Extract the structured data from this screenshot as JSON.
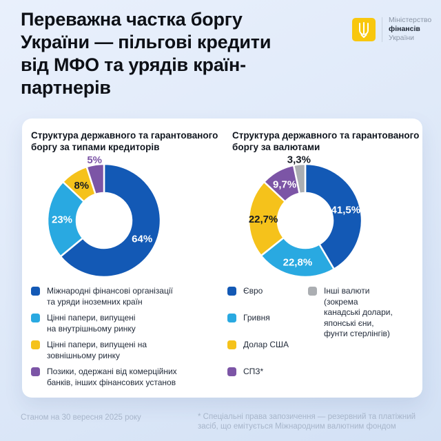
{
  "header": {
    "title": "Переважна частка боргу\nУкраїни — пільгові кредити\nвід МФО та урядів країн-\nпартнерів",
    "logo": {
      "line1": "Міністерство",
      "line2": "фінансів",
      "line3": "України",
      "emblem": "ukraine-trident",
      "emblem_color": "#F8C70E"
    }
  },
  "chart_data": [
    {
      "type": "pie",
      "donut": true,
      "title": "Структура державного та гарантованого боргу за типами кредиторів",
      "title_lines": "Структура державного та гарантованого\nборгу за типами кредиторів",
      "unit": "%",
      "legend_position": "bottom",
      "slices": [
        {
          "name": "Міжнародні фінансові організації та уряди іноземних країн",
          "value": 64,
          "label": "64%",
          "color": "#1359B5",
          "label_color": "#FFFFFF",
          "legend_text": "Міжнародні фінансові організації\nта уряди іноземних країн"
        },
        {
          "name": "Цінні папери, випущені на внутрішньому ринку",
          "value": 23,
          "label": "23%",
          "color": "#29A9E1",
          "label_color": "#FFFFFF",
          "legend_text": "Цінні папери, випущені\nна внутрішньому ринку"
        },
        {
          "name": "Цінні папери, випущені на зовнішньому ринку",
          "value": 8,
          "label": "8%",
          "color": "#F5C21B",
          "label_color": "#151A22",
          "legend_text": "Цінні папери, випущені на\nзовнішньому ринку"
        },
        {
          "name": "Позики, одержані від комерційних банків, інших фінансових установ",
          "value": 5,
          "label": "5%",
          "color": "#7C55A6",
          "label_color": "#7C55A6",
          "label_outside": true,
          "legend_text": "Позики, одержані від комерційних\nбанків, інших фінансових установ"
        }
      ]
    },
    {
      "type": "pie",
      "donut": true,
      "title": "Структура державного та гарантованого боргу за валютами",
      "title_lines": "Структура державного та гарантованого\nборгу за валютами",
      "unit": "%",
      "legend_position": "bottom",
      "slices": [
        {
          "name": "Євро",
          "value": 41.5,
          "label": "41,5%",
          "color": "#1359B5",
          "label_color": "#FFFFFF",
          "legend_text": "Євро",
          "legend_column": 1
        },
        {
          "name": "Гривня",
          "value": 22.8,
          "label": "22,8%",
          "color": "#29A9E1",
          "label_color": "#FFFFFF",
          "legend_text": "Гривня",
          "legend_column": 1
        },
        {
          "name": "Долар США",
          "value": 22.7,
          "label": "22,7%",
          "color": "#F5C21B",
          "label_color": "#151A22",
          "legend_text": "Долар США",
          "legend_column": 1
        },
        {
          "name": "СПЗ*",
          "value": 9.7,
          "label": "9,7%",
          "color": "#7C55A6",
          "label_color": "#FFFFFF",
          "legend_text": "СПЗ*",
          "legend_column": 1
        },
        {
          "name": "Інші валюти (зокрема канадські долари, японські єни, фунти стерлінгів)",
          "value": 3.3,
          "label": "3,3%",
          "color": "#ABAEB2",
          "label_color": "#151A22",
          "label_outside": true,
          "legend_text": "Інші валюти\n(зокрема\nканадські долари,\nяпонські єни,\nфунти стерлінгів)",
          "legend_column": 2
        }
      ]
    }
  ],
  "footer": {
    "as_of": "Станом на 30 вересня 2025 року",
    "footnote": "* Спеціальні права запозичення — резервний та платіжний\nзасіб, що емітується Міжнародним валютним фондом"
  }
}
